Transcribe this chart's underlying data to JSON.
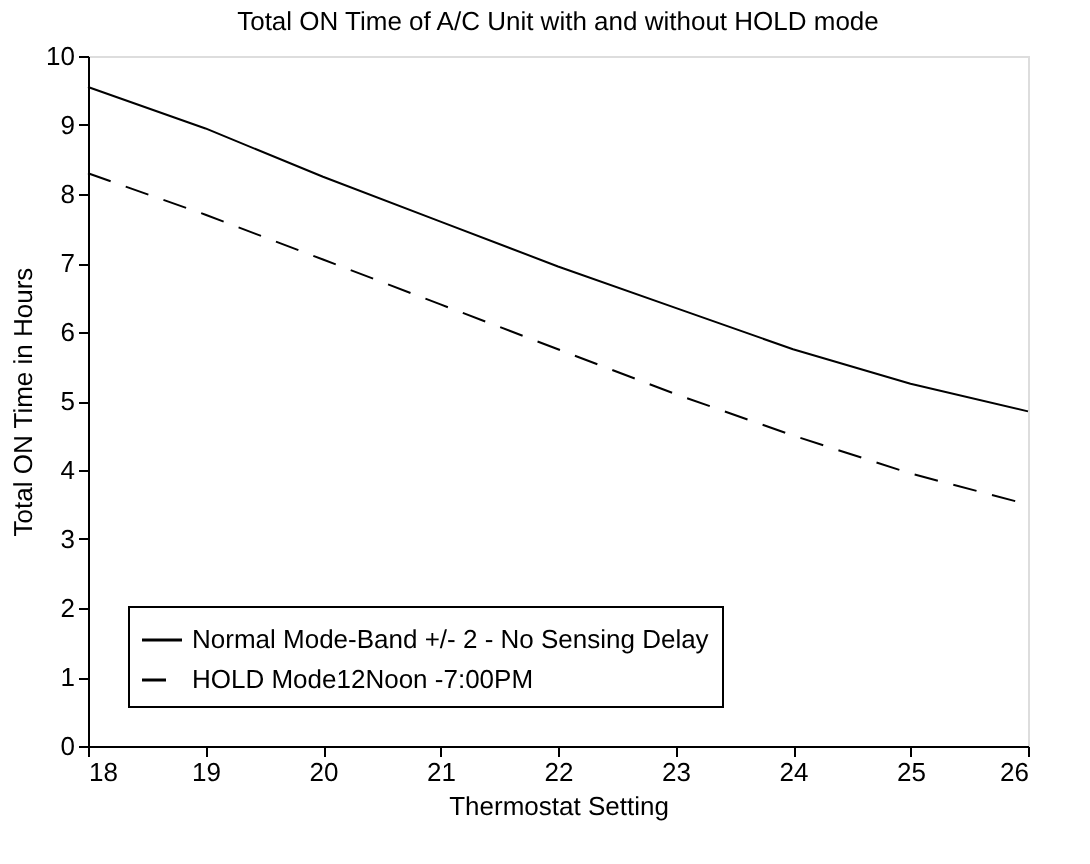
{
  "chart_data": {
    "type": "line",
    "title": "Total ON Time of A/C Unit with and without HOLD mode",
    "xlabel": "Thermostat Setting",
    "ylabel": "Total ON Time in Hours",
    "x": [
      18,
      19,
      20,
      21,
      22,
      23,
      24,
      25,
      26
    ],
    "series": [
      {
        "name": "Normal Mode-Band +/- 2 - No Sensing Delay",
        "color": "#000000",
        "line_style": "solid",
        "values": [
          9.55,
          8.95,
          8.25,
          7.6,
          6.95,
          6.35,
          5.75,
          5.25,
          4.85
        ]
      },
      {
        "name": "HOLD Mode12Noon -7:00PM",
        "color": "#000000",
        "line_style": "dashed",
        "values": [
          8.3,
          7.7,
          7.05,
          6.4,
          5.75,
          5.1,
          4.5,
          3.95,
          3.5
        ]
      }
    ],
    "xlim": [
      18,
      26
    ],
    "xticks": [
      18,
      19,
      20,
      21,
      22,
      23,
      24,
      25,
      26
    ],
    "ylim": [
      0,
      10
    ],
    "yticks": [
      0,
      1,
      2,
      3,
      4,
      5,
      6,
      7,
      8,
      9,
      10
    ],
    "grid": false,
    "legend": "bottom left",
    "marker": "none"
  }
}
